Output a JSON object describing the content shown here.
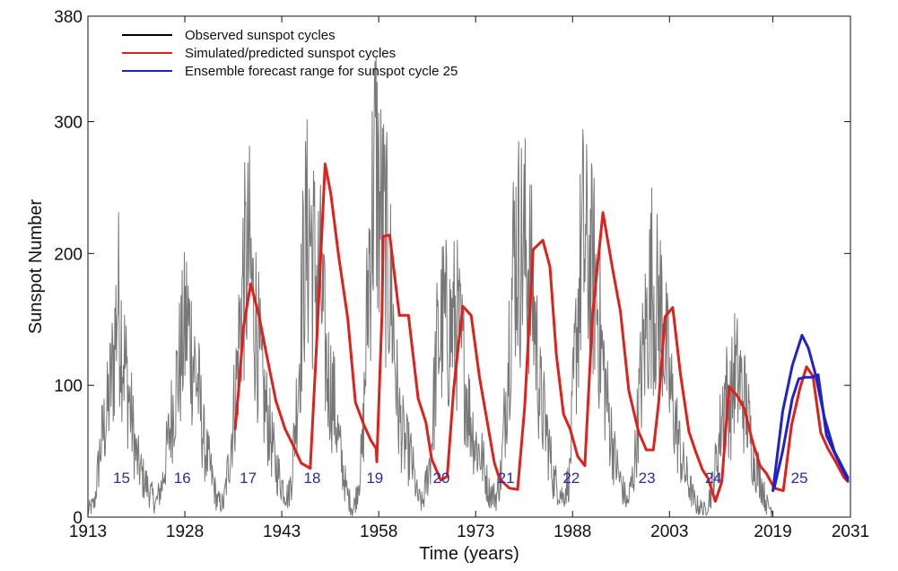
{
  "chart_data": {
    "type": "line",
    "title": "",
    "xlabel": "Time (years)",
    "ylabel": "Sunspot Number",
    "xlim": [
      1913,
      2031
    ],
    "ylim": [
      0,
      380
    ],
    "x_ticks": [
      1913,
      1928,
      1943,
      1958,
      1973,
      1988,
      2003,
      2019,
      2031
    ],
    "y_ticks": [
      0,
      100,
      200,
      300,
      380
    ],
    "grid": false,
    "legend": {
      "position": "top-left",
      "entries": [
        {
          "label": "Observed sunspot cycles",
          "color": "#000000"
        },
        {
          "label": "Simulated/predicted sunspot cycles",
          "color": "#e0211b"
        },
        {
          "label": "Ensemble forecast range for sunspot cycle 25",
          "color": "#1e22c8"
        }
      ]
    },
    "cycle_labels": [
      {
        "label": "15",
        "x": 1918.2,
        "y": 26
      },
      {
        "label": "16",
        "x": 1927.6,
        "y": 26
      },
      {
        "label": "17",
        "x": 1937.8,
        "y": 26
      },
      {
        "label": "18",
        "x": 1947.7,
        "y": 26
      },
      {
        "label": "19",
        "x": 1957.4,
        "y": 26
      },
      {
        "label": "20",
        "x": 1967.7,
        "y": 26
      },
      {
        "label": "21",
        "x": 1977.7,
        "y": 26
      },
      {
        "label": "22",
        "x": 1987.8,
        "y": 26
      },
      {
        "label": "23",
        "x": 1999.5,
        "y": 26
      },
      {
        "label": "24",
        "x": 2009.8,
        "y": 26
      },
      {
        "label": "25",
        "x": 2023.1,
        "y": 26
      }
    ],
    "series": [
      {
        "name": "Observed sunspot cycles",
        "color": "#777777",
        "style": "noisy-monthly",
        "x": [
          1913.0,
          1914.0,
          1915.0,
          1916.0,
          1917.0,
          1917.6,
          1918.5,
          1919.5,
          1920.5,
          1921.5,
          1922.5,
          1923.5,
          1924.5,
          1925.5,
          1926.5,
          1927.5,
          1928.3,
          1929.0,
          1930.0,
          1931.0,
          1932.0,
          1933.0,
          1934.0,
          1935.0,
          1936.0,
          1937.0,
          1938.0,
          1938.5,
          1939.0,
          1940.0,
          1941.0,
          1942.0,
          1943.0,
          1944.0,
          1944.5,
          1945.5,
          1946.5,
          1947.3,
          1948.0,
          1949.0,
          1950.0,
          1951.0,
          1952.0,
          1953.0,
          1954.0,
          1954.5,
          1955.5,
          1956.5,
          1957.5,
          1958.2,
          1959.0,
          1960.0,
          1961.0,
          1962.0,
          1963.0,
          1964.0,
          1964.8,
          1966.0,
          1967.0,
          1968.0,
          1968.9,
          1970.0,
          1971.0,
          1972.0,
          1973.0,
          1974.0,
          1975.0,
          1976.2,
          1977.0,
          1978.0,
          1979.0,
          1979.9,
          1981.0,
          1982.0,
          1983.0,
          1984.0,
          1985.0,
          1986.5,
          1987.5,
          1988.5,
          1989.5,
          1990.5,
          1991.5,
          1992.5,
          1993.5,
          1994.5,
          1995.5,
          1996.5,
          1997.5,
          1998.5,
          1999.5,
          2000.3,
          2001.0,
          2001.9,
          2003.0,
          2004.0,
          2005.0,
          2006.0,
          2007.0,
          2008.5,
          2009.5,
          2010.5,
          2011.5,
          2012.5,
          2013.0,
          2014.0,
          2015.0,
          2016.0,
          2017.0,
          2018.0,
          2019.0
        ],
        "values": [
          5,
          10,
          55,
          80,
          120,
          170,
          125,
          85,
          45,
          30,
          20,
          10,
          25,
          60,
          95,
          125,
          150,
          130,
          100,
          55,
          35,
          12,
          10,
          50,
          105,
          180,
          195,
          165,
          150,
          95,
          70,
          40,
          25,
          15,
          30,
          100,
          200,
          220,
          190,
          175,
          110,
          90,
          50,
          20,
          5,
          15,
          50,
          195,
          270,
          230,
          210,
          165,
          80,
          55,
          45,
          15,
          10,
          45,
          125,
          150,
          140,
          150,
          120,
          80,
          55,
          45,
          20,
          15,
          35,
          120,
          205,
          205,
          200,
          160,
          90,
          65,
          30,
          15,
          30,
          130,
          210,
          190,
          180,
          125,
          80,
          45,
          25,
          10,
          35,
          100,
          150,
          180,
          160,
          155,
          100,
          70,
          40,
          25,
          10,
          5,
          20,
          50,
          95,
          85,
          110,
          100,
          80,
          45,
          30,
          10,
          5
        ]
      },
      {
        "name": "Simulated/predicted sunspot cycles",
        "color": "#e0211b",
        "x": [
          1935.8,
          1936.3,
          1937.1,
          1938.2,
          1939.5,
          1940.7,
          1942.1,
          1943.5,
          1944.8,
          1946.0,
          1947.4,
          1948.4,
          1949.7,
          1950.6,
          1951.8,
          1953.2,
          1954.4,
          1955.7,
          1956.8,
          1957.6,
          1957.7,
          1958.5,
          1958.7,
          1959.7,
          1961.2,
          1962.6,
          1964.1,
          1965.3,
          1966.2,
          1967.6,
          1968.6,
          1969.6,
          1971.0,
          1972.3,
          1973.6,
          1974.8,
          1975.9,
          1976.7,
          1978.2,
          1979.5,
          1980.6,
          1981.9,
          1983.4,
          1984.5,
          1985.5,
          1986.6,
          1987.6,
          1988.8,
          1989.9,
          1991.1,
          1992.7,
          1994.2,
          1995.4,
          1996.7,
          1998.2,
          1999.4,
          2000.5,
          2001.3,
          2002.3,
          2003.5,
          2004.7,
          2006.0,
          2007.1,
          2008.1,
          2009.0,
          2010.1,
          2011.1,
          2012.2,
          2013.5,
          2014.6,
          2015.8,
          2017.0,
          2018.0,
          2019.2,
          2020.6,
          2021.9,
          2023.2,
          2024.2,
          2025.2,
          2026.4,
          2027.5,
          2028.7,
          2030.0,
          2030.6
        ],
        "values": [
          67,
          95,
          145,
          177,
          152,
          122,
          88,
          67,
          54,
          41,
          37,
          132,
          268,
          245,
          198,
          151,
          87,
          70,
          58,
          52,
          42,
          154,
          213,
          214,
          153,
          153,
          90,
          72,
          44,
          28,
          31,
          97,
          160,
          153,
          106,
          72,
          41,
          29,
          22,
          21,
          84,
          203,
          210,
          190,
          123,
          78,
          67,
          46,
          39,
          154,
          231,
          188,
          156,
          96,
          65,
          51,
          51,
          86,
          152,
          159,
          108,
          65,
          49,
          36,
          29,
          12,
          27,
          99,
          92,
          82,
          58,
          39,
          33,
          22,
          20,
          70,
          98,
          114,
          107,
          64,
          52,
          42,
          30,
          27
        ]
      },
      {
        "name": "Ensemble forecast range for sunspot cycle 25",
        "color": "#1e22c8",
        "x": [
          2019.0,
          2020.5,
          2022.0,
          2023.5,
          2024.5,
          2025.5,
          2027.0,
          2028.5,
          2030.6
        ],
        "values": [
          20,
          80,
          115,
          138,
          128,
          110,
          75,
          50,
          30
        ]
      },
      {
        "name": "",
        "color": "#1e22c8",
        "x": [
          2019.2,
          2020.5,
          2022.0,
          2023.0,
          2024.0,
          2025.0,
          2026.0,
          2027.3,
          2028.7,
          2030.6
        ],
        "values": [
          22,
          50,
          90,
          105,
          106,
          106,
          108,
          62,
          47,
          28
        ]
      }
    ]
  }
}
